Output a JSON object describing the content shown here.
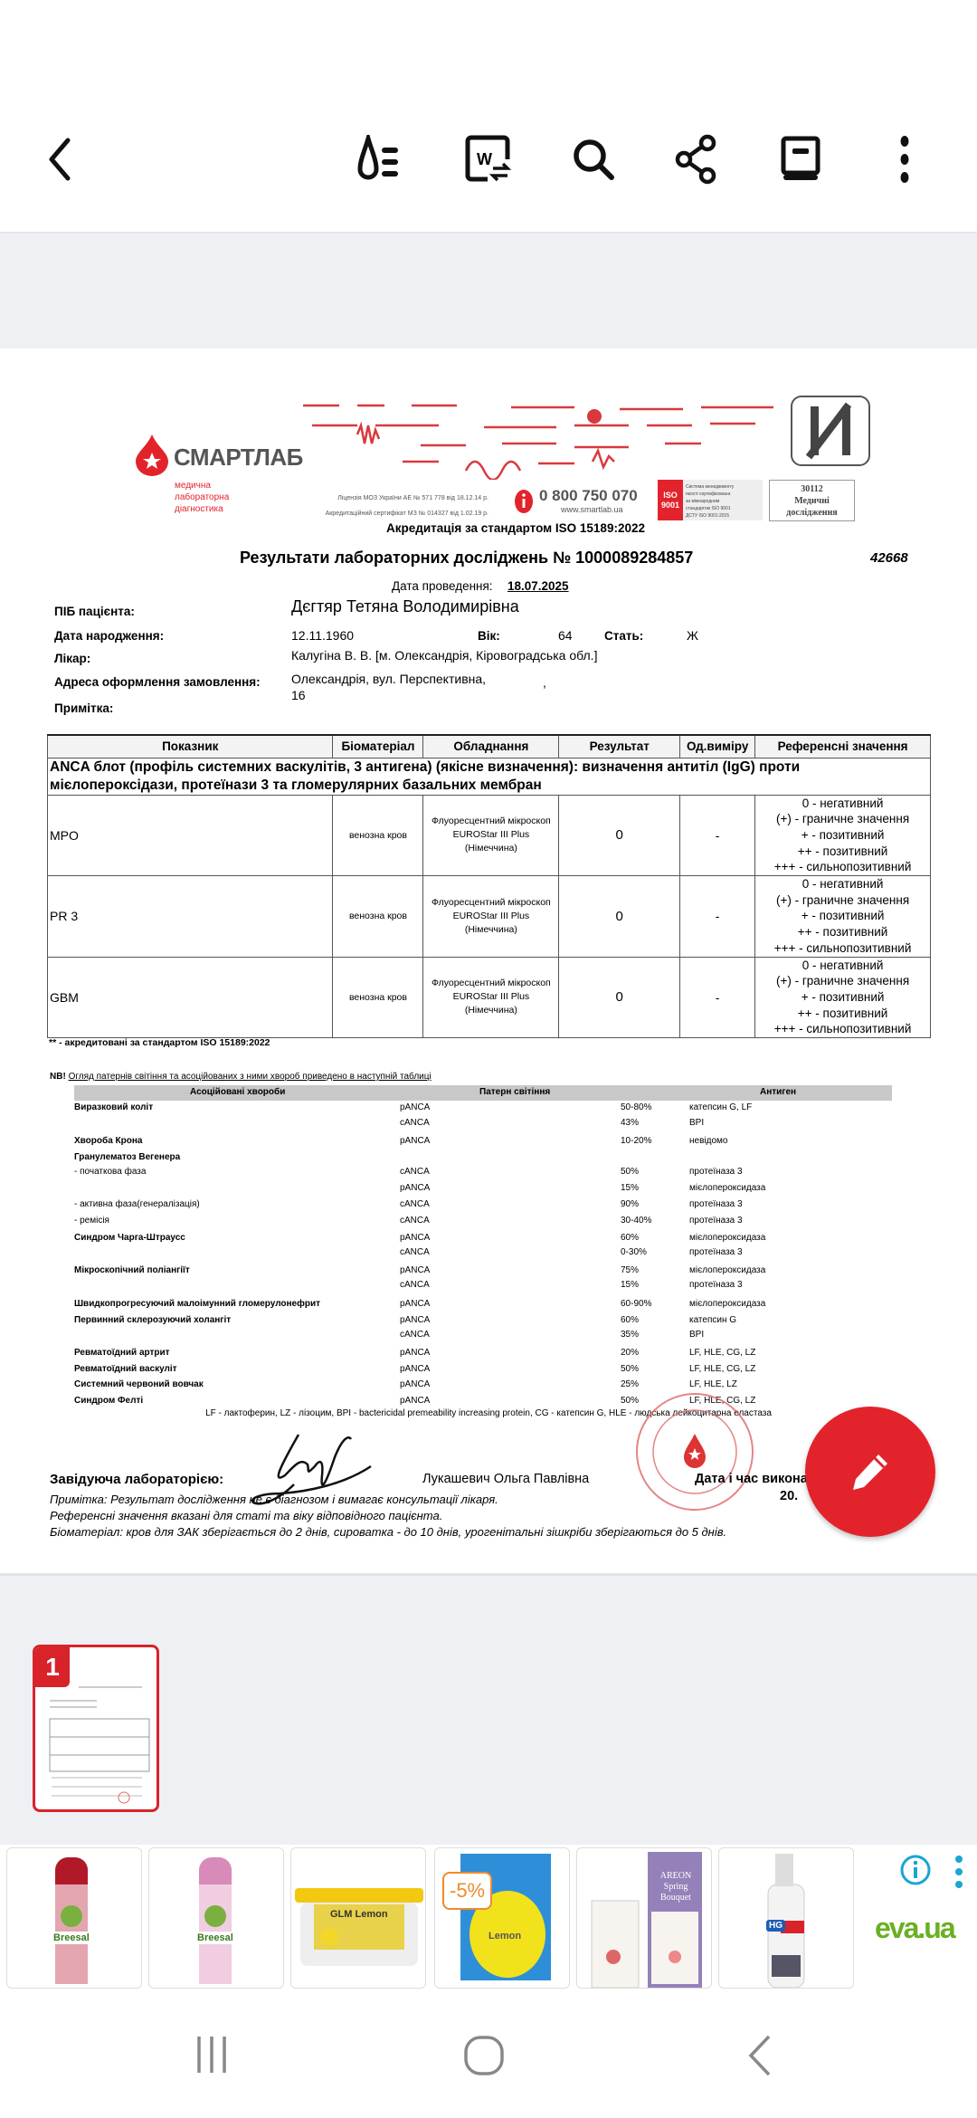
{
  "toolbar": {
    "icons": [
      "back-icon",
      "reading-mode-icon",
      "convert-to-word-icon",
      "search-icon",
      "share-icon",
      "reader-view-icon",
      "more-options-icon"
    ]
  },
  "colors": {
    "brand_red": "#e3232b",
    "toolbar_bg": "#ffffff",
    "panel_bg": "#eff0f3",
    "eva_green": "#6ab023",
    "eva_orange": "#f07d1a",
    "info_blue": "#19a6d1"
  },
  "document": {
    "lab_name": "СМАРТЛАБ",
    "lab_subtitle": [
      "медична",
      "лабораторна",
      "діагностика"
    ],
    "license": "Ліцензія МОЗ України АЕ № 571 778 від 18.12.14 р.",
    "accreditation_cert": "Акредитаційний сертифікат МЗ № 014327 від 1.02.19 р.",
    "phone": "0 800 750 070",
    "website": "www.smartlab.ua",
    "iso_badge": "ISO 9001",
    "iso_text": [
      "Система менеджменту",
      "якості сертифікована",
      "за міжнародним",
      "стандартом ISO 9001",
      "ДСТУ ISO 9001:2015"
    ],
    "cert_box": [
      "30112",
      "Медичні",
      "дослідження"
    ],
    "accreditation": "Акредитація за стандартом ISO 15189:2022",
    "title": "Результати лабораторних досліджень  № 1000089284857",
    "code": "42668",
    "date_label": "Дата проведення:",
    "date_value": "18.07.2025",
    "patient": {
      "name_label": "ПІБ пацієнта:",
      "name": "Дєгтяр Тетяна Володимирівна",
      "dob_label": "Дата народження:",
      "dob": "12.11.1960",
      "age_label": "Вік:",
      "age": "64",
      "sex_label": "Стать:",
      "sex": "Ж",
      "doctor_label": "Лікар:",
      "doctor": "Калугіна В. В. [м. Олександрія, Кіровоградська обл.]",
      "address_label": "Адреса оформлення замовлення:",
      "address_line1": "Олександрія, вул. Перспективна,",
      "address_comma": ",",
      "address_line2": "16",
      "note_label": "Примітка:"
    },
    "results_table": {
      "headers": [
        "Показник",
        "Біоматеріал",
        "Обладнання",
        "Результат",
        "Од.виміру",
        "Референсні значення"
      ],
      "group": "ANCA блот  (профіль системних васкулітів, 3 антигена) (якісне визначення): визначення антитіл (IgG) проти мієлопероксідази, протеїнази 3 та гломерулярних базальних мембран",
      "rows": [
        {
          "name": "MPO",
          "biomaterial": "венозна кров",
          "equipment": [
            "Флуоресцентний мікроскоп",
            "EUROStar III Plus",
            "(Німеччина)"
          ],
          "result": "0",
          "unit": "-",
          "reference": [
            "0 - негативний",
            "(+) - граничне значення",
            "+ - позитивний",
            "++ - позитивний",
            "+++ - сильнопозитивний"
          ]
        },
        {
          "name": "PR 3",
          "biomaterial": "венозна кров",
          "equipment": [
            "Флуоресцентний мікроскоп",
            "EUROStar III Plus",
            "(Німеччина)"
          ],
          "result": "0",
          "unit": "-",
          "reference": [
            "0 - негативний",
            "(+) - граничне значення",
            "+ - позитивний",
            "++ - позитивний",
            "+++ - сильнопозитивний"
          ]
        },
        {
          "name": "GBM",
          "biomaterial": "венозна кров",
          "equipment": [
            "Флуоресцентний мікроскоп",
            "EUROStar III Plus",
            "(Німеччина)"
          ],
          "result": "0",
          "unit": "-",
          "reference": [
            "0 - негативний",
            "(+) - граничне значення",
            "+ - позитивний",
            "++ - позитивний",
            "+++ - сильнопозитивний"
          ]
        }
      ],
      "footnote": "** - акредитовані за стандартом ISO 15189:2022"
    },
    "nb": {
      "prefix": "NB!",
      "text": "Огляд патернів світіння та асоційованих з ними хвороб приведено в наступній таблиці",
      "headers": [
        "Асоційовані хвороби",
        "Патерн світіння",
        "Антиген"
      ],
      "rows": [
        {
          "disease": "Виразковий коліт",
          "bold": true,
          "pattern": "pANCA",
          "percent": "50-80%",
          "antigen": "катепсин G, LF"
        },
        {
          "disease": "",
          "pattern": "cANCA",
          "percent": "43%",
          "antigen": "BPI"
        },
        {
          "disease": "Хвороба Крона",
          "bold": true,
          "pattern": "pANCA",
          "percent": "10-20%",
          "antigen": "невідомо"
        },
        {
          "disease": "Гранулематоз Вегенера",
          "bold": true,
          "pattern": "",
          "percent": "",
          "antigen": ""
        },
        {
          "disease": " - початкова фаза",
          "pattern": "cANCA",
          "percent": "50%",
          "antigen": "протеїназа 3"
        },
        {
          "disease": "",
          "pattern": "pANCA",
          "percent": "15%",
          "antigen": "мієлопероксидаза"
        },
        {
          "disease": " - активна фаза(генералізація)",
          "pattern": "cANCA",
          "percent": "90%",
          "antigen": "протеїназа 3"
        },
        {
          "disease": " - ремісія",
          "pattern": "cANCA",
          "percent": "30-40%",
          "antigen": "протеїназа 3"
        },
        {
          "disease": "Синдром Чарга-Штраусс",
          "bold": true,
          "pattern": "pANCA",
          "percent": "60%",
          "antigen": "мієлопероксидаза"
        },
        {
          "disease": "",
          "pattern": "cANCA",
          "percent": "0-30%",
          "antigen": "протеїназа 3"
        },
        {
          "disease": "Мікроскопічний поліангіїт",
          "bold": true,
          "pattern": "pANCA",
          "percent": "75%",
          "antigen": "мієлопероксидаза"
        },
        {
          "disease": "",
          "pattern": "cANCA",
          "percent": "15%",
          "antigen": "протеїназа 3"
        },
        {
          "disease": "Швидкопрогресуючий малоімунний гломерулонефрит",
          "bold": true,
          "pattern": "pANCA",
          "percent": "60-90%",
          "antigen": "мієлопероксидаза"
        },
        {
          "disease": "Первинний склерозуючий холангіт",
          "bold": true,
          "pattern": "pANCA",
          "percent": "60%",
          "antigen": "катепсин G"
        },
        {
          "disease": "",
          "pattern": "cANCA",
          "percent": "35%",
          "antigen": "BPI"
        },
        {
          "disease": "Ревматоїдний артрит",
          "bold": true,
          "pattern": "pANCA",
          "percent": "20%",
          "antigen": "LF, HLE, CG, LZ"
        },
        {
          "disease": "Ревматоїдний васкуліт",
          "bold": true,
          "pattern": "pANCA",
          "percent": "50%",
          "antigen": "LF, HLE, CG, LZ"
        },
        {
          "disease": "Системний червоний вовчак",
          "bold": true,
          "pattern": "pANCA",
          "percent": "25%",
          "antigen": "LF, HLE, LZ"
        },
        {
          "disease": "Синдром Фелті",
          "bold": true,
          "pattern": "pANCA",
          "percent": "50%",
          "antigen": "LF, HLE, CG, LZ"
        }
      ],
      "legend": "LF - лактоферин,  LZ - лізоцим,  BPI - bactericidal premeability increasing protein, CG  - катепсин G, HLE - людська лейкоцитарна еластаза"
    },
    "signature": {
      "head_label": "Завідуюча лабораторією:",
      "head_name": "Лукашевич Ольга Павлівна",
      "datetime_label": "Дата і час викона",
      "datetime_value": "20.",
      "stamp_text": "Діагностичний центр"
    },
    "notes": [
      "Примітка: Результат дослідження не є діагнозом і вимагає консультації лікаря.",
      "Референсні значення вказані для статі та віку відповідного пацієнта.",
      "Біоматеріал: кров для ЗАК зберігається до 2 днів, сироватка - до 10 днів, урогенітальні зішкріби зберігаються до 5 днів."
    ]
  },
  "thumbnails": [
    {
      "page": "1",
      "selected": true
    }
  ],
  "ads": {
    "discount_badge": "-5%",
    "brand": "eva.ua",
    "items": [
      "Breesal",
      "Breesal",
      "GLM Lemon",
      "Lemon",
      "AREON Spring Bouquet",
      "HG"
    ]
  },
  "fab": {
    "icon": "pencil-icon"
  },
  "navbar": {
    "icons": [
      "recent-apps-icon",
      "home-icon",
      "back-icon"
    ]
  }
}
